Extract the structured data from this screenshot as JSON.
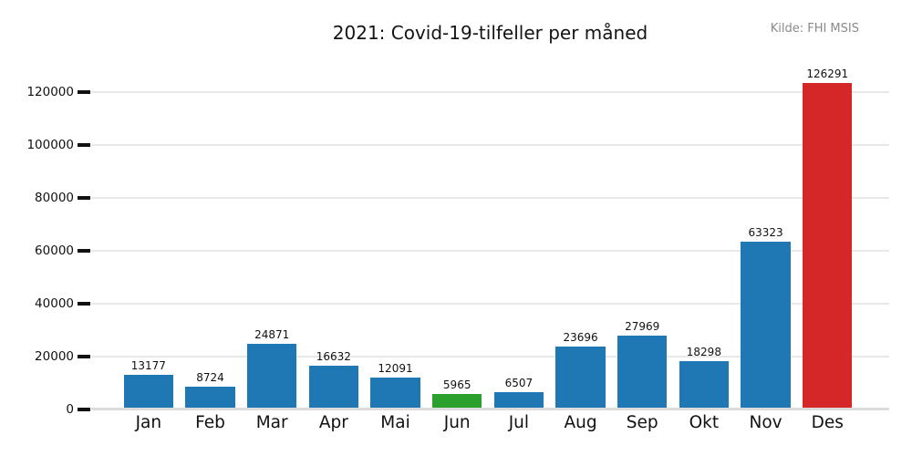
{
  "chart_data": {
    "type": "bar",
    "title": "2021: Covid-19-tilfeller per måned",
    "source": "Kilde: FHI MSIS",
    "categories": [
      "Jan",
      "Feb",
      "Mar",
      "Apr",
      "Mai",
      "Jun",
      "Jul",
      "Aug",
      "Sep",
      "Okt",
      "Nov",
      "Des"
    ],
    "values": [
      13177,
      8724,
      24871,
      16632,
      12091,
      5965,
      6507,
      23696,
      27969,
      18298,
      63323,
      126291
    ],
    "colors": [
      "#1f77b4",
      "#1f77b4",
      "#1f77b4",
      "#1f77b4",
      "#1f77b4",
      "#2ca02c",
      "#1f77b4",
      "#1f77b4",
      "#1f77b4",
      "#1f77b4",
      "#1f77b4",
      "#d62728"
    ],
    "xlabel": "",
    "ylabel": "",
    "yticks": [
      0,
      20000,
      40000,
      60000,
      80000,
      100000,
      120000
    ],
    "ytick_labels": [
      "0",
      "20000",
      "40000",
      "60000",
      "80000",
      "100000",
      "120000"
    ],
    "ylim": [
      0,
      129300
    ],
    "grid": true,
    "legend": false,
    "accent_colors": {
      "bar_default": "#1f77b4",
      "bar_highlight_jun": "#2ca02c",
      "bar_highlight_des": "#d62728",
      "gridline": "#e8e8e8",
      "axis_line": "#dcdcdc",
      "tick": "#111111",
      "source_text": "#8a8a8a"
    }
  }
}
